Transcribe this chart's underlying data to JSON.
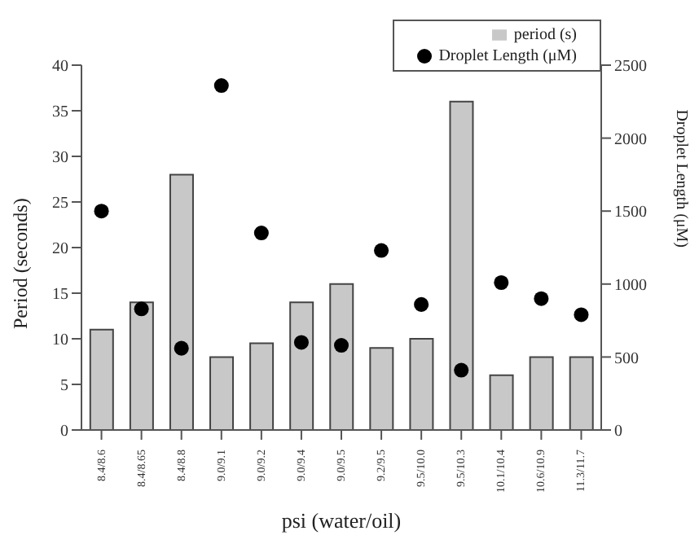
{
  "chart_data": {
    "type": "bar",
    "xlabel": "psi (water/oil)",
    "ylabel": "Period (seconds)",
    "y2label": "Droplet Length (μM)",
    "categories": [
      "8.4/8.6",
      "8.4/8.65",
      "8.4/8.8",
      "9.0/9.1",
      "9.0/9.2",
      "9.0/9.4",
      "9.0/9.5",
      "9.2/9.5",
      "9.5/10.0",
      "9.5/10.3",
      "10.1/10.4",
      "10.6/10.9",
      "11.3/11.7"
    ],
    "series": [
      {
        "name": "period (s)",
        "type": "bar",
        "color": "#c8c8c8",
        "values": [
          11,
          14,
          28,
          8,
          9.5,
          14,
          16,
          9,
          10,
          36,
          6,
          8,
          8
        ]
      },
      {
        "name": "Droplet Length (μM)",
        "type": "scatter",
        "axis": "y2",
        "color": "#000000",
        "values": [
          1500,
          830,
          560,
          2360,
          1350,
          600,
          580,
          1230,
          860,
          410,
          1010,
          900,
          790
        ]
      }
    ],
    "ylim": [
      0,
      40
    ],
    "yticks": [
      0,
      5,
      10,
      15,
      20,
      25,
      30,
      35,
      40
    ],
    "y2lim": [
      0,
      2500
    ],
    "y2ticks": [
      0,
      500,
      1000,
      1500,
      2000,
      2500
    ],
    "grid": false,
    "legend": "top right",
    "marker": "circle"
  }
}
